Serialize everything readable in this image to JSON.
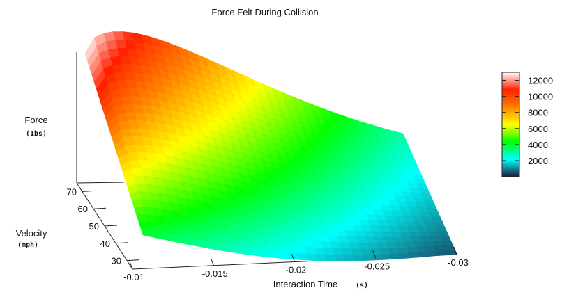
{
  "chart_data": {
    "type": "surface",
    "title": "Force Felt During Collision",
    "x_axis": {
      "label": "Interaction Time",
      "unit": "(s)",
      "range": [
        -0.01,
        -0.03
      ],
      "ticks": [
        "-0.01",
        "-0.015",
        "-0.02",
        "-0.025",
        "-0.03"
      ]
    },
    "y_axis": {
      "label": "Velocity",
      "unit": "(mph)",
      "range": [
        25,
        75
      ],
      "ticks": [
        "30",
        "40",
        "50",
        "60",
        "70"
      ]
    },
    "z_axis": {
      "label": "Force",
      "unit": "(1bs)"
    },
    "colorbar": {
      "range": [
        0,
        13000
      ],
      "ticks": [
        "2000",
        "4000",
        "6000",
        "8000",
        "10000",
        "12000"
      ],
      "colors": [
        "#1e1b3c",
        "#00ffff",
        "#00ff00",
        "#ffff00",
        "#ff8000",
        "#ff2000",
        "#ffffff"
      ]
    },
    "corner_points": [
      {
        "time": -0.01,
        "velocity": 25,
        "force": 3800
      },
      {
        "time": -0.01,
        "velocity": 75,
        "force": 12000
      },
      {
        "time": -0.03,
        "velocity": 75,
        "force": 4400
      },
      {
        "time": -0.03,
        "velocity": 25,
        "force": 800
      }
    ]
  }
}
